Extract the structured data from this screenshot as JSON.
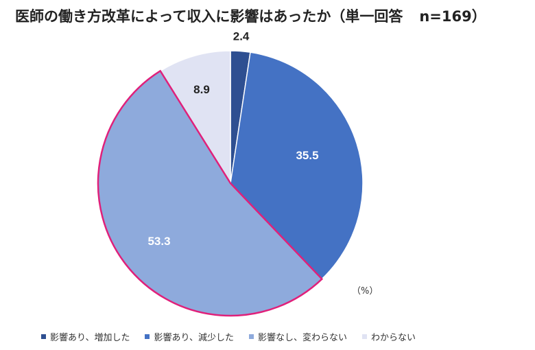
{
  "title": "医師の働き方改革によって収入に影響はあったか（単一回答",
  "sample_size": "n=169）",
  "unit_label": "（%）",
  "chart_data": {
    "type": "pie",
    "title": "医師の働き方改革によって収入に影響はあったか（単一回答 n=169）",
    "unit": "%",
    "legend_position": "bottom",
    "slices": [
      {
        "label": "影響あり、増加した",
        "value": 2.4,
        "display": "2.4",
        "color": "#2e4f91"
      },
      {
        "label": "影響あり、減少した",
        "value": 35.5,
        "display": "35.5",
        "color": "#4472c4"
      },
      {
        "label": "影響なし、変わらない",
        "value": 53.3,
        "display": "53.3",
        "color": "#8eaadc"
      },
      {
        "label": "わからない",
        "value": 8.9,
        "display": "8.9",
        "color": "#e0e3f3"
      }
    ],
    "highlighted_slice": "影響なし、変わらない",
    "highlight_color": "#e0207a"
  }
}
